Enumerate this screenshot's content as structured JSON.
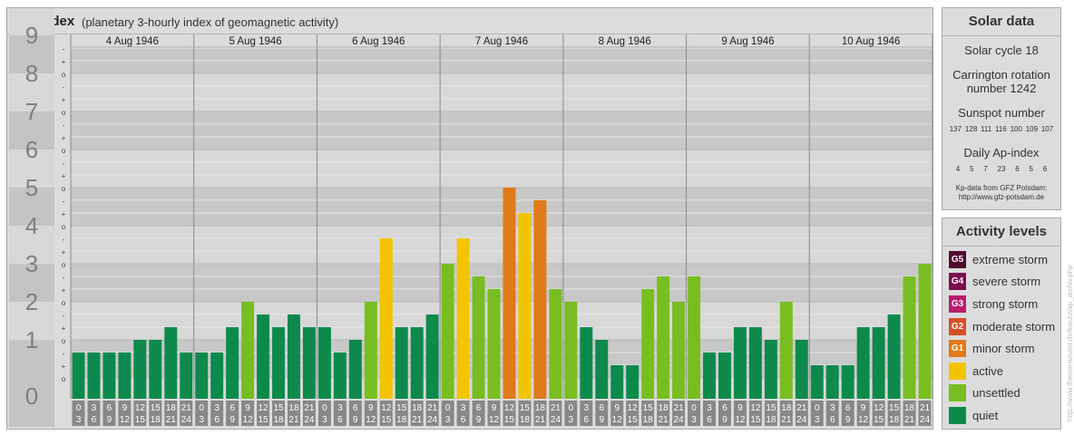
{
  "header": {
    "title": "Kp-index",
    "subtitle": "(planetary 3-hourly index of geomagnetic activity)"
  },
  "chart_data": {
    "type": "bar",
    "title": "Kp-index",
    "subtitle": "(planetary 3-hourly index of geomagnetic activity)",
    "ylim": [
      0,
      9
    ],
    "y_ticks": [
      "0",
      "1",
      "2",
      "3",
      "4",
      "5",
      "6",
      "7",
      "8",
      "9"
    ],
    "minor_ticks": [
      "-",
      "o",
      "+"
    ],
    "days": [
      "4 Aug 1946",
      "5 Aug 1946",
      "6 Aug 1946",
      "7 Aug 1946",
      "8 Aug 1946",
      "9 Aug 1946",
      "10 Aug 1946"
    ],
    "intervals": [
      {
        "start": "0",
        "end": "3"
      },
      {
        "start": "3",
        "end": "6"
      },
      {
        "start": "6",
        "end": "9"
      },
      {
        "start": "9",
        "end": "12"
      },
      {
        "start": "12",
        "end": "15"
      },
      {
        "start": "15",
        "end": "18"
      },
      {
        "start": "18",
        "end": "21"
      },
      {
        "start": "21",
        "end": "24"
      }
    ],
    "values": [
      0.667,
      0.667,
      0.667,
      0.667,
      1.0,
      1.0,
      1.333,
      0.667,
      0.667,
      0.667,
      1.333,
      2.0,
      1.667,
      1.333,
      1.667,
      1.333,
      1.333,
      0.667,
      1.0,
      2.0,
      3.667,
      1.333,
      1.333,
      1.667,
      3.0,
      3.667,
      2.667,
      2.333,
      5.0,
      4.333,
      4.667,
      2.333,
      2.0,
      1.333,
      1.0,
      0.333,
      0.333,
      2.333,
      2.667,
      2.0,
      2.667,
      0.667,
      0.667,
      1.333,
      1.333,
      1.0,
      2.0,
      1.0,
      0.333,
      0.333,
      0.333,
      1.333,
      1.333,
      1.667,
      2.667,
      3.0
    ],
    "level_colors": {
      "quiet": "#0d8a4b",
      "unsettled": "#78be20",
      "active": "#f4c400",
      "minor": "#e07a1a",
      "moderate": "#d74f26",
      "strong": "#bc1b6e",
      "severe": "#7d0d4d",
      "extreme": "#4f0a2e"
    },
    "grid": true
  },
  "solar": {
    "title": "Solar data",
    "cycle_label": "Solar cycle 18",
    "carrington_line1": "Carrington rotation",
    "carrington_line2": "number 1242",
    "sunspot_label": "Sunspot number",
    "sunspot_values": [
      "137",
      "128",
      "111",
      "116",
      "100",
      "109",
      "107"
    ],
    "ap_label": "Daily Ap-index",
    "ap_values": [
      "4",
      "5",
      "7",
      "23",
      "6",
      "5",
      "6"
    ],
    "source_line1": "Kp-data from GFZ Potsdam:",
    "source_line2": "http://www.gfz-potsdam.de"
  },
  "activity": {
    "title": "Activity levels",
    "items": [
      {
        "badge": "G5",
        "label": "extreme storm",
        "color": "#4f0a2e"
      },
      {
        "badge": "G4",
        "label": "severe storm",
        "color": "#7d0d4d"
      },
      {
        "badge": "G3",
        "label": "strong storm",
        "color": "#bc1b6e"
      },
      {
        "badge": "G2",
        "label": "moderate storm",
        "color": "#d74f26"
      },
      {
        "badge": "G1",
        "label": "minor storm",
        "color": "#e07a1a"
      },
      {
        "badge": "",
        "label": "active",
        "color": "#f4c400"
      },
      {
        "badge": "",
        "label": "unsettled",
        "color": "#78be20"
      },
      {
        "badge": "",
        "label": "quiet",
        "color": "#0d8a4b"
      }
    ]
  },
  "watermark": "http://www.theisenseuter.de/kwurz/ap_archiv.php"
}
